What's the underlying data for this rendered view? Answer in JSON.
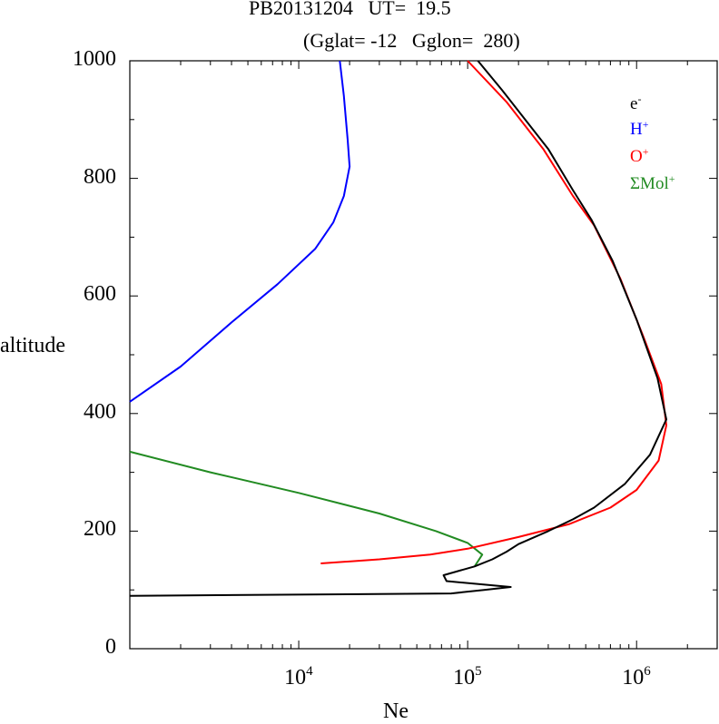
{
  "chart_data": {
    "type": "line",
    "title": "PB20131204   UT=  19.5",
    "subtitle": "(Gglat= -12   Gglon=  280)",
    "xlabel": "Ne",
    "ylabel": "altitude",
    "x_scale": "log",
    "xlim": [
      1000,
      3000000
    ],
    "ylim": [
      0,
      1000
    ],
    "y_ticks": [
      0,
      200,
      400,
      600,
      800,
      1000
    ],
    "x_ticks": [
      {
        "value": 10000,
        "base": "10",
        "exp": "4"
      },
      {
        "value": 100000,
        "base": "10",
        "exp": "5"
      },
      {
        "value": 1000000,
        "base": "10",
        "exp": "6"
      }
    ],
    "legend_position": "top-right",
    "series": [
      {
        "name": "e",
        "sup": "-",
        "color": "#000000",
        "points": [
          [
            1000,
            90
          ],
          [
            80000,
            94
          ],
          [
            125000,
            100
          ],
          [
            180000,
            105
          ],
          [
            75000,
            115
          ],
          [
            72000,
            125
          ],
          [
            110000,
            140
          ],
          [
            140000,
            152
          ],
          [
            170000,
            165
          ],
          [
            200000,
            178
          ],
          [
            300000,
            200
          ],
          [
            420000,
            220
          ],
          [
            560000,
            240
          ],
          [
            850000,
            280
          ],
          [
            1200000,
            330
          ],
          [
            1500000,
            390
          ],
          [
            1330000,
            460
          ],
          [
            1000000,
            560
          ],
          [
            720000,
            660
          ],
          [
            540000,
            730
          ],
          [
            420000,
            780
          ],
          [
            300000,
            850
          ],
          [
            160000,
            950
          ],
          [
            115000,
            1000
          ]
        ]
      },
      {
        "name": "H",
        "sup": "+",
        "color": "#0000ff",
        "points": [
          [
            1000,
            420
          ],
          [
            2000,
            480
          ],
          [
            4000,
            555
          ],
          [
            7500,
            620
          ],
          [
            12500,
            680
          ],
          [
            16000,
            725
          ],
          [
            18500,
            770
          ],
          [
            20000,
            820
          ],
          [
            19500,
            865
          ],
          [
            18500,
            940
          ],
          [
            17500,
            1000
          ]
        ]
      },
      {
        "name": "O",
        "sup": "+",
        "color": "#ff0000",
        "points": [
          [
            13500,
            145
          ],
          [
            30000,
            152
          ],
          [
            60000,
            160
          ],
          [
            100000,
            170
          ],
          [
            200000,
            190
          ],
          [
            400000,
            212
          ],
          [
            700000,
            240
          ],
          [
            1000000,
            270
          ],
          [
            1350000,
            320
          ],
          [
            1500000,
            380
          ],
          [
            1400000,
            450
          ],
          [
            1100000,
            530
          ],
          [
            800000,
            630
          ],
          [
            560000,
            720
          ],
          [
            420000,
            770
          ],
          [
            280000,
            850
          ],
          [
            170000,
            930
          ],
          [
            100000,
            1000
          ]
        ]
      },
      {
        "name": "ΣMol",
        "sup": "+",
        "color": "#228b22",
        "points": [
          [
            1000,
            335
          ],
          [
            3000,
            300
          ],
          [
            10000,
            265
          ],
          [
            30000,
            230
          ],
          [
            65000,
            200
          ],
          [
            100000,
            180
          ],
          [
            122000,
            160
          ],
          [
            110000,
            140
          ]
        ]
      }
    ]
  }
}
